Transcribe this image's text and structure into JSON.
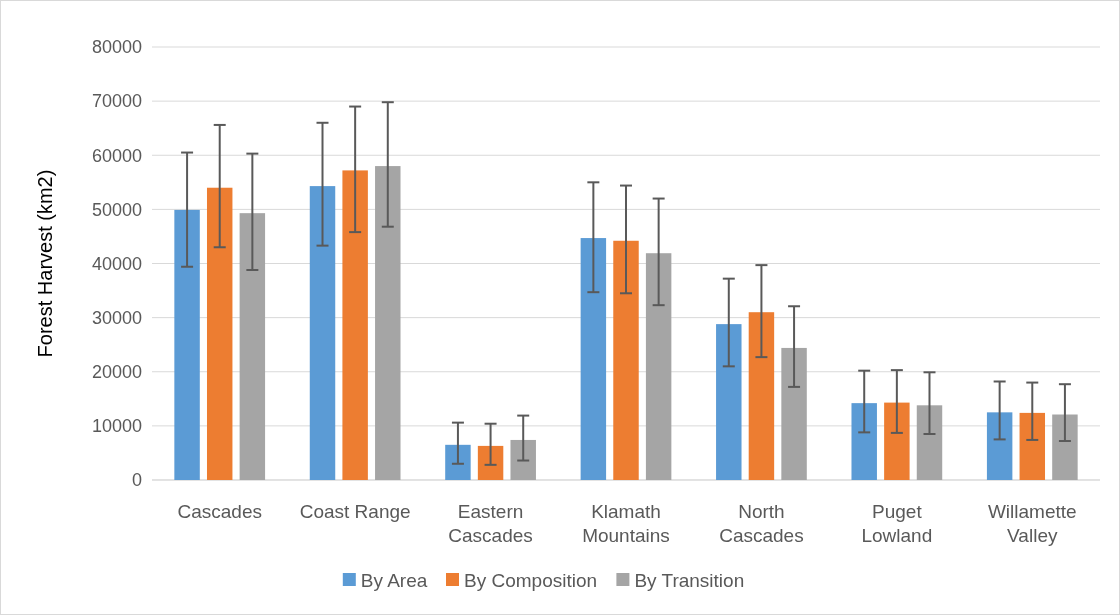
{
  "chart_data": {
    "type": "bar",
    "ylabel": "Forest Harvest (km2)",
    "categories": [
      "Cascades",
      "Coast Range",
      "Eastern\nCascades",
      "Klamath\nMountains",
      "North\nCascades",
      "Puget\nLowland",
      "Willamette\nValley"
    ],
    "series": [
      {
        "name": "By Area",
        "color": "#5b9bd5",
        "values": [
          49900,
          54300,
          6500,
          44700,
          28800,
          14200,
          12500
        ],
        "errors": [
          [
            39400,
            60500
          ],
          [
            43300,
            66000
          ],
          [
            3000,
            10600
          ],
          [
            34700,
            55000
          ],
          [
            21000,
            37200
          ],
          [
            8800,
            20200
          ],
          [
            7500,
            18200
          ]
        ]
      },
      {
        "name": "By Composition",
        "color": "#ed7d31",
        "values": [
          54000,
          57200,
          6300,
          44200,
          31000,
          14300,
          12400
        ],
        "errors": [
          [
            43000,
            65600
          ],
          [
            45800,
            69000
          ],
          [
            2800,
            10400
          ],
          [
            34500,
            54400
          ],
          [
            22700,
            39700
          ],
          [
            8700,
            20300
          ],
          [
            7400,
            18000
          ]
        ]
      },
      {
        "name": "By Transition",
        "color": "#a5a5a5",
        "values": [
          49300,
          58000,
          7400,
          41900,
          24400,
          13800,
          12100
        ],
        "errors": [
          [
            38800,
            60300
          ],
          [
            46800,
            69800
          ],
          [
            3600,
            11900
          ],
          [
            32300,
            52000
          ],
          [
            17200,
            32100
          ],
          [
            8500,
            19900
          ],
          [
            7200,
            17700
          ]
        ]
      }
    ],
    "ylim": [
      0,
      80000
    ],
    "yticks": [
      0,
      10000,
      20000,
      30000,
      40000,
      50000,
      60000,
      70000,
      80000
    ],
    "grid": "y",
    "legend": "bottom"
  }
}
